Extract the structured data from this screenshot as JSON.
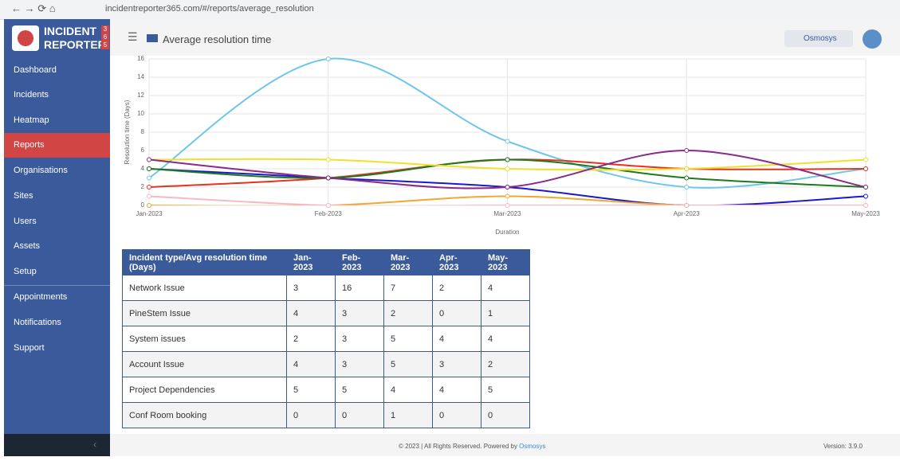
{
  "browser": {
    "url": "incidentreporter365.com/#/reports/average_resolution"
  },
  "logo": {
    "line1": "INCIDENT",
    "line2": "REPORTER",
    "badge": [
      "3",
      "6",
      "5"
    ]
  },
  "nav": [
    "Dashboard",
    "Incidents",
    "Heatmap",
    "Reports",
    "Organisations",
    "Sites",
    "Users",
    "Assets",
    "Setup",
    "Appointments",
    "Notifications",
    "Support"
  ],
  "header": {
    "title": "Average resolution time",
    "user": "Osmosys"
  },
  "chart_data": {
    "type": "line",
    "categories": [
      "Jan-2023",
      "Feb-2023",
      "Mar-2023",
      "Apr-2023",
      "May-2023"
    ],
    "y_label": "Resolution time (Days)",
    "x_label": "Duration",
    "ylim": [
      0,
      16
    ],
    "yticks": [
      0,
      2,
      4,
      6,
      8,
      10,
      12,
      14,
      16
    ],
    "grid": true,
    "series": [
      {
        "color": "#6ec6ea",
        "values": [
          3,
          16,
          7,
          2,
          4
        ]
      },
      {
        "color": "#1a1acc",
        "values": [
          4,
          3,
          2,
          0,
          1
        ]
      },
      {
        "color": "#e8321e",
        "values": [
          2,
          3,
          5,
          4,
          4
        ]
      },
      {
        "color": "#1e7a1e",
        "values": [
          4,
          3,
          5,
          3,
          2
        ]
      },
      {
        "color": "#f2e02a",
        "values": [
          5,
          5,
          4,
          4,
          5
        ]
      },
      {
        "color": "#f0a830",
        "values": [
          0,
          0,
          1,
          0,
          0
        ]
      },
      {
        "color": "#8a2a8a",
        "values": [
          5,
          3,
          2,
          6,
          2
        ]
      },
      {
        "color": "#f6b8c4",
        "values": [
          1,
          0,
          0,
          0,
          0
        ]
      }
    ]
  },
  "table": {
    "header": [
      "Incident type/Avg resolution time (Days)",
      "Jan-2023",
      "Feb-2023",
      "Mar-2023",
      "Apr-2023",
      "May-2023"
    ],
    "rows": [
      [
        "Network Issue",
        3,
        16,
        7,
        2,
        4
      ],
      [
        "PineStem Issue",
        4,
        3,
        2,
        0,
        1
      ],
      [
        "System issues",
        2,
        3,
        5,
        4,
        4
      ],
      [
        "Account Issue",
        4,
        3,
        5,
        3,
        2
      ],
      [
        "Project Dependencies",
        5,
        5,
        4,
        4,
        5
      ],
      [
        "Conf Room booking",
        0,
        0,
        1,
        0,
        0
      ]
    ]
  },
  "footer": {
    "copyright": "© 2023 | All Rights Reserved. Powered by",
    "link": "Osmosys",
    "version": "Version: 3.9.0"
  }
}
